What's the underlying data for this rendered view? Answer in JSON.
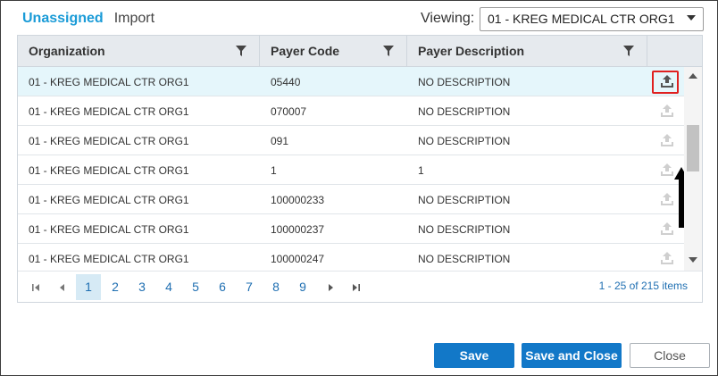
{
  "tabs": {
    "unassigned": "Unassigned",
    "import": "Import"
  },
  "viewing": {
    "label": "Viewing:",
    "selected": "01 - KREG MEDICAL CTR ORG1"
  },
  "grid": {
    "columns": [
      "Organization",
      "Payer Code",
      "Payer Description"
    ],
    "rows": [
      {
        "org": "01 - KREG MEDICAL CTR ORG1",
        "code": "05440",
        "desc": "NO DESCRIPTION"
      },
      {
        "org": "01 - KREG MEDICAL CTR ORG1",
        "code": "070007",
        "desc": "NO DESCRIPTION"
      },
      {
        "org": "01 - KREG MEDICAL CTR ORG1",
        "code": "091",
        "desc": "NO DESCRIPTION"
      },
      {
        "org": "01 - KREG MEDICAL CTR ORG1",
        "code": "1",
        "desc": "1"
      },
      {
        "org": "01 - KREG MEDICAL CTR ORG1",
        "code": "100000233",
        "desc": "NO DESCRIPTION"
      },
      {
        "org": "01 - KREG MEDICAL CTR ORG1",
        "code": "100000237",
        "desc": "NO DESCRIPTION"
      },
      {
        "org": "01 - KREG MEDICAL CTR ORG1",
        "code": "100000247",
        "desc": "NO DESCRIPTION"
      }
    ],
    "row_icon": "upload-icon"
  },
  "pager": {
    "pages": [
      "1",
      "2",
      "3",
      "4",
      "5",
      "6",
      "7",
      "8",
      "9"
    ],
    "current": "1",
    "info": "1 - 25 of 215 items"
  },
  "buttons": {
    "save": "Save",
    "save_close": "Save and Close",
    "close": "Close"
  },
  "colors": {
    "accent": "#1a9bd7",
    "primary_button": "#1278c8",
    "highlight": "#e02020",
    "selected_row": "#e5f6fb"
  }
}
